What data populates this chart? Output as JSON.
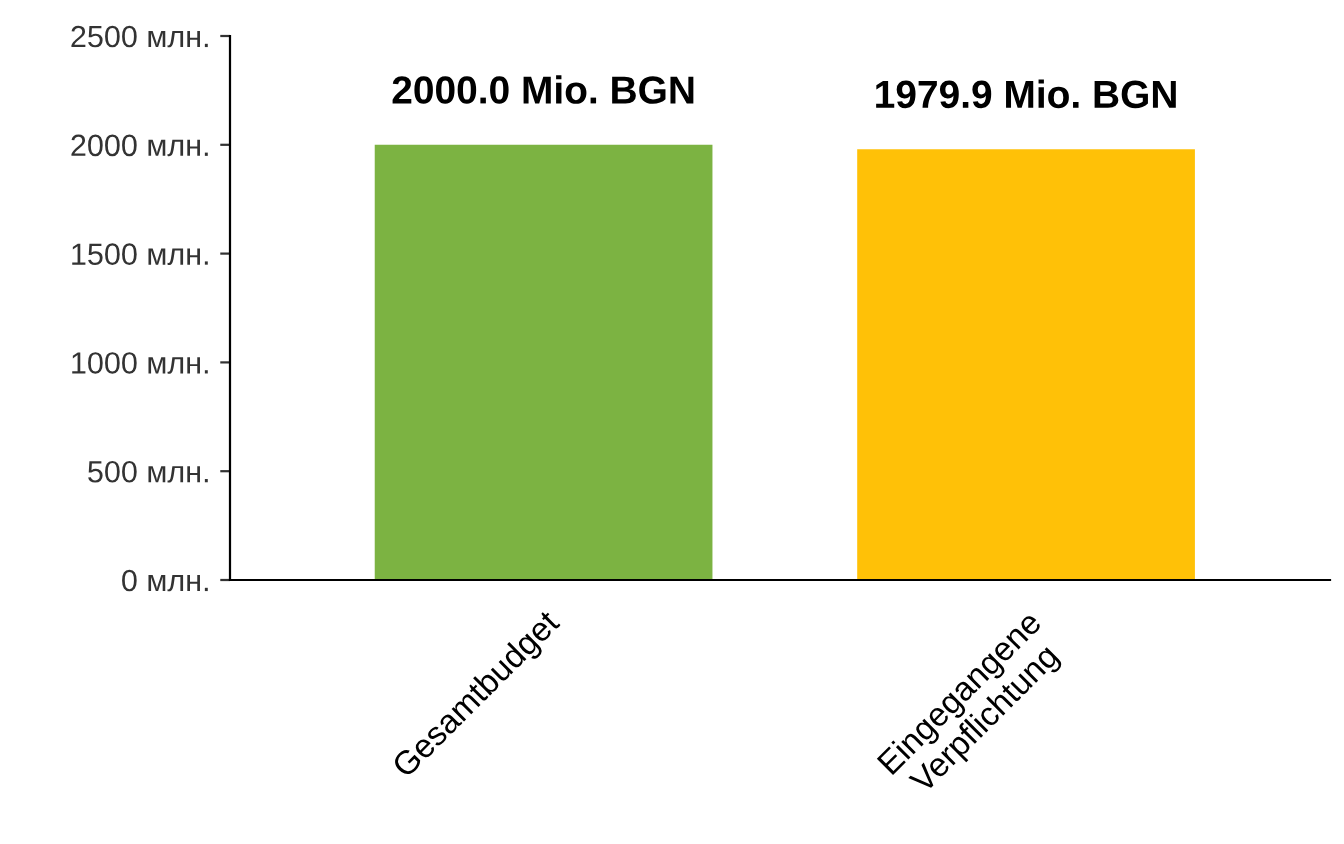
{
  "chart_data": {
    "type": "bar",
    "categories": [
      "Gesamtbudget",
      "Eingegangene\nVerpflichtung"
    ],
    "values": [
      2000.0,
      1979.9
    ],
    "colors": [
      "#7cb342",
      "#ffc107"
    ],
    "value_labels": [
      "2000.0 Mio. BGN",
      "1979.9 Mio. BGN"
    ],
    "ylim": [
      0,
      2500
    ],
    "yticks": [
      {
        "value": 0,
        "label": "0 млн."
      },
      {
        "value": 500,
        "label": "500 млн."
      },
      {
        "value": 1000,
        "label": "1000 млн."
      },
      {
        "value": 1500,
        "label": "1500 млн."
      },
      {
        "value": 2000,
        "label": "2000 млн."
      },
      {
        "value": 2500,
        "label": "2500 млн."
      }
    ],
    "grid": false
  }
}
